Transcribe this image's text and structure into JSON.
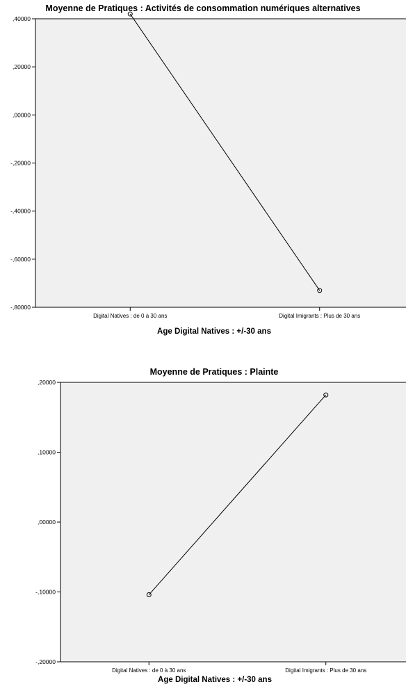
{
  "chart_data": [
    {
      "type": "line",
      "title": "Moyenne de Pratiques : Activités de consommation numériques alternatives",
      "xlabel": "Age Digital Natives : +/-30 ans",
      "ylabel": "",
      "categories": [
        "Digital Natives : de 0 à 30 ans",
        "Digital Imigrants : Plus de 30 ans"
      ],
      "values": [
        0.42,
        -0.73
      ],
      "ylim": [
        -0.8,
        0.4
      ],
      "yticks": [
        ",40000",
        ",20000",
        ",00000",
        "-,20000",
        "-,40000",
        "-,60000",
        "-,80000"
      ],
      "grid": false,
      "colors": {
        "plot_bg": "#f0f0f0",
        "line": "#000000"
      }
    },
    {
      "type": "line",
      "title": "Moyenne de Pratiques : Plainte",
      "xlabel": "Age Digital Natives : +/-30 ans",
      "ylabel": "",
      "categories": [
        "Digital Natives : de 0 à 30 ans",
        "Digital Imigrants : Plus de 30 ans"
      ],
      "values": [
        -0.104,
        0.182
      ],
      "ylim": [
        -0.2,
        0.2
      ],
      "yticks": [
        ",20000",
        ",10000",
        ",00000",
        "-,10000",
        "-,20000"
      ],
      "grid": false,
      "colors": {
        "plot_bg": "#f0f0f0",
        "line": "#000000"
      }
    }
  ]
}
